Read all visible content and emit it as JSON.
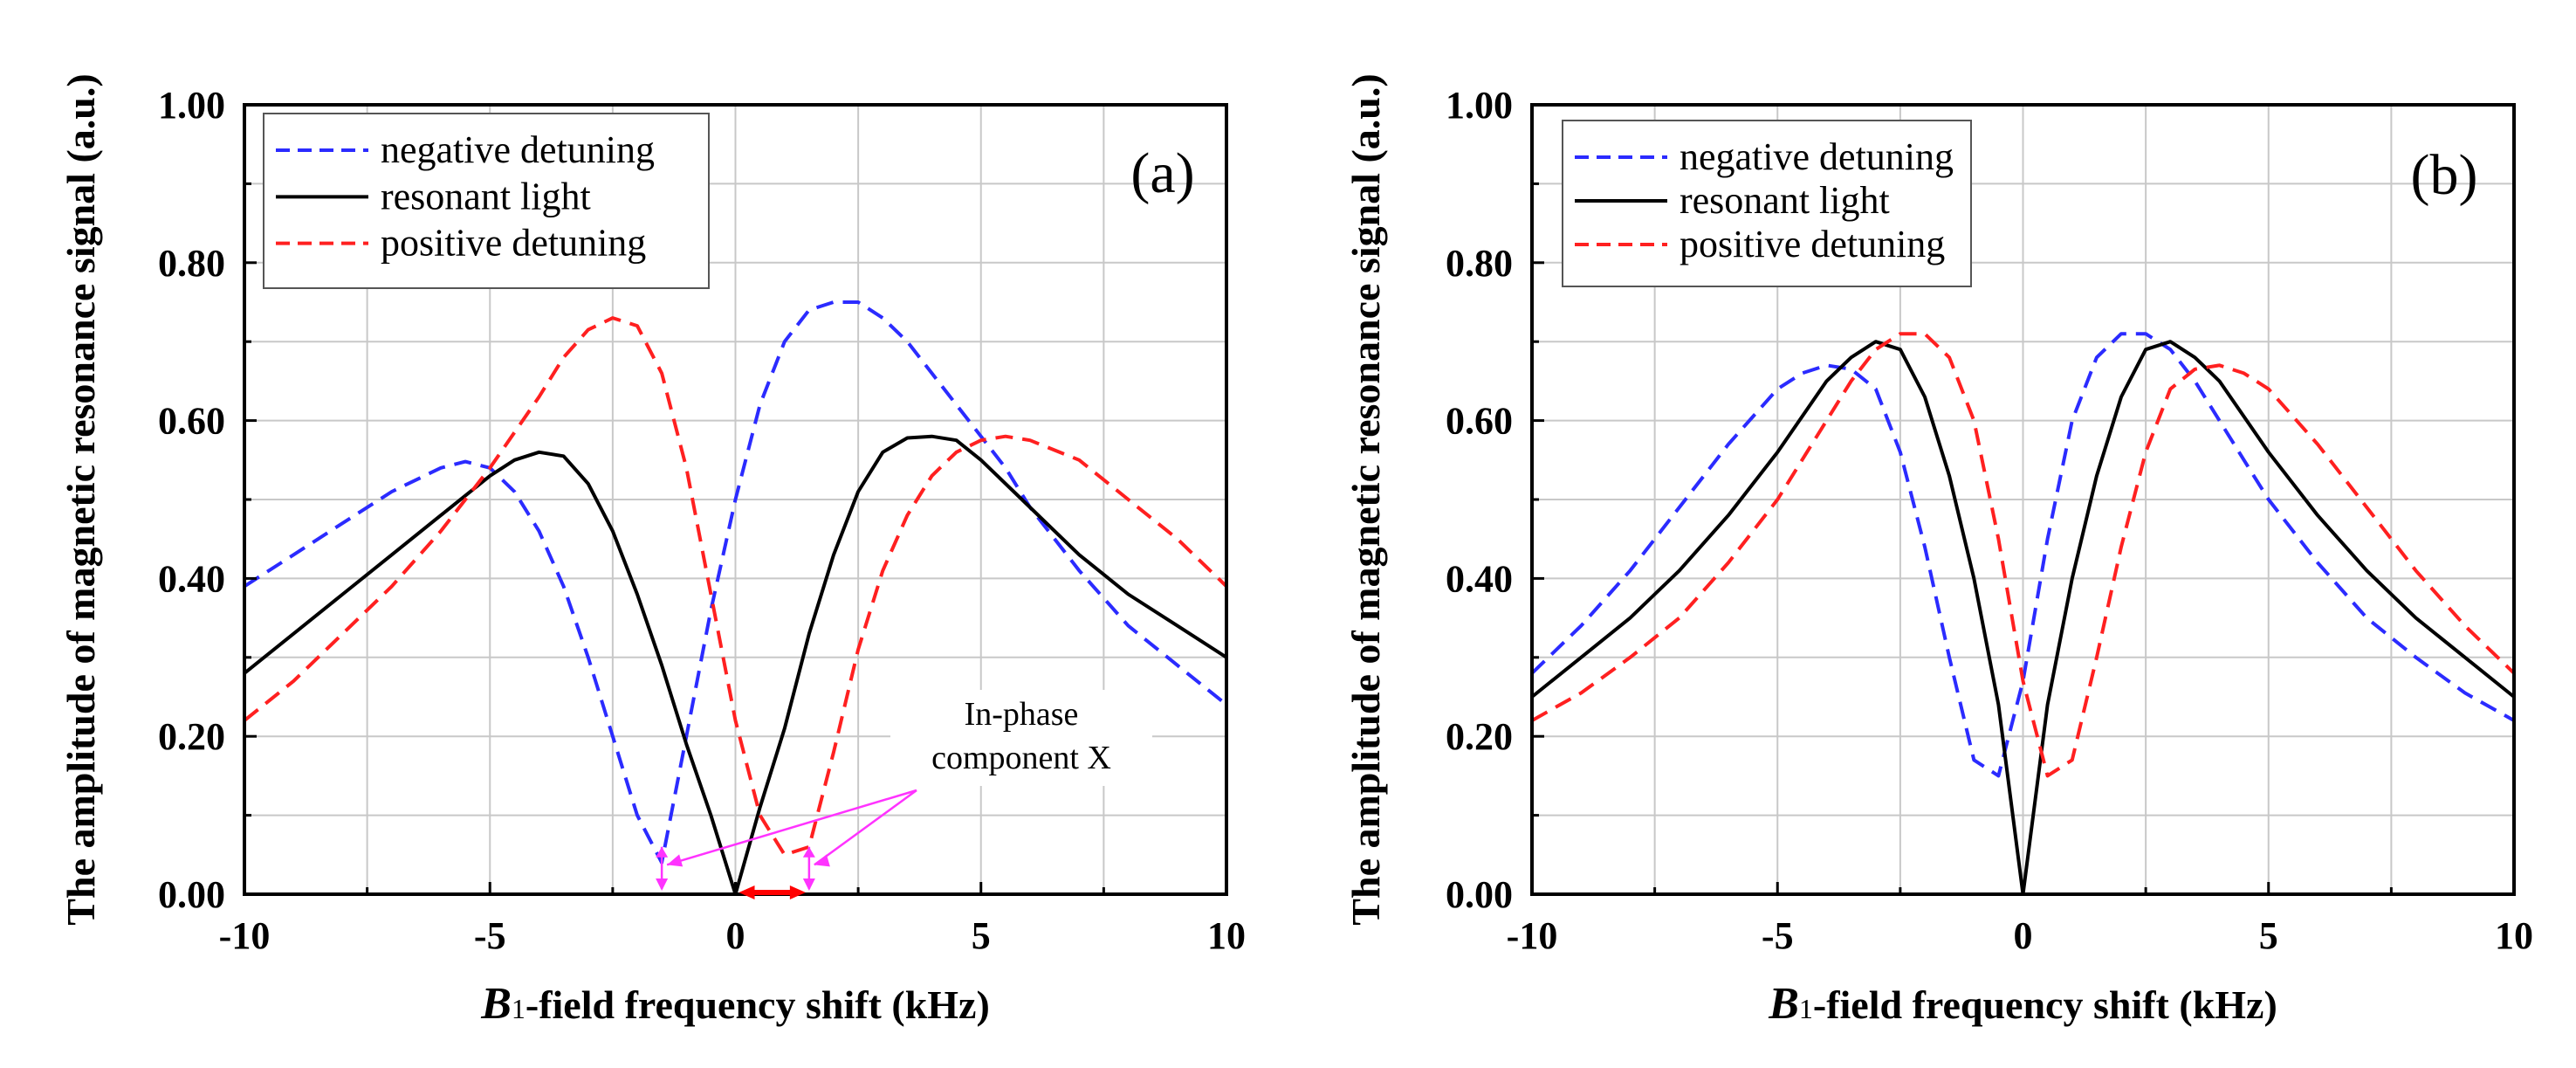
{
  "chart_data": [
    {
      "type": "line",
      "panel_label": "(a)",
      "xlabel_italic": "B",
      "xlabel_sub": "1",
      "xlabel_rest": "-field frequency shift (kHz)",
      "ylabel": "The amplitude of magnetic resonance signal (a.u.)",
      "xlim": [
        -10,
        10
      ],
      "ylim": [
        0,
        1
      ],
      "xticks": [
        -10,
        -5,
        0,
        5,
        10
      ],
      "xtick_labels": [
        "-10",
        "-5",
        "0",
        "5",
        "10"
      ],
      "yticks": [
        0,
        0.2,
        0.4,
        0.6,
        0.8,
        1.0
      ],
      "ytick_labels": [
        "0.00",
        "0.20",
        "0.40",
        "0.60",
        "0.80",
        "1.00"
      ],
      "grid": true,
      "legend_position": "top-left",
      "annotation": {
        "text_lines": [
          "In-phase",
          "component X"
        ],
        "points": [
          [
            -1.5,
            0.035
          ],
          [
            1.5,
            0.035
          ]
        ]
      },
      "series": [
        {
          "name": "negative detuning",
          "color": "#2b2bff",
          "style": "dashed",
          "x": [
            -10,
            -9,
            -8,
            -7,
            -6,
            -5.5,
            -5,
            -4.5,
            -4,
            -3.5,
            -3,
            -2.5,
            -2,
            -1.5,
            -1,
            -0.5,
            0,
            0.5,
            1,
            1.5,
            2,
            2.5,
            3,
            3.5,
            4,
            4.5,
            5,
            5.5,
            6,
            7,
            8,
            9,
            10
          ],
          "y": [
            0.39,
            0.43,
            0.47,
            0.51,
            0.54,
            0.548,
            0.54,
            0.51,
            0.46,
            0.39,
            0.3,
            0.2,
            0.1,
            0.04,
            0.2,
            0.36,
            0.5,
            0.62,
            0.7,
            0.74,
            0.75,
            0.75,
            0.73,
            0.7,
            0.66,
            0.62,
            0.58,
            0.54,
            0.49,
            0.41,
            0.34,
            0.29,
            0.24
          ]
        },
        {
          "name": "resonant light",
          "color": "#000000",
          "style": "solid",
          "x": [
            -10,
            -9,
            -8,
            -7,
            -6,
            -5,
            -4.5,
            -4,
            -3.5,
            -3,
            -2.5,
            -2,
            -1.5,
            -1,
            -0.5,
            0,
            0.5,
            1,
            1.5,
            2,
            2.5,
            3,
            3.5,
            4,
            4.5,
            5,
            6,
            7,
            8,
            9,
            10
          ],
          "y": [
            0.28,
            0.33,
            0.38,
            0.43,
            0.48,
            0.53,
            0.55,
            0.56,
            0.555,
            0.52,
            0.46,
            0.38,
            0.29,
            0.19,
            0.1,
            0.0,
            0.11,
            0.21,
            0.33,
            0.43,
            0.51,
            0.56,
            0.578,
            0.58,
            0.575,
            0.55,
            0.49,
            0.43,
            0.38,
            0.34,
            0.3
          ]
        },
        {
          "name": "positive detuning",
          "color": "#ff2020",
          "style": "dashed",
          "x": [
            -10,
            -9,
            -8,
            -7,
            -6,
            -5,
            -4,
            -3.5,
            -3,
            -2.5,
            -2,
            -1.5,
            -1,
            -0.5,
            0,
            0.5,
            1,
            1.5,
            2,
            2.5,
            3,
            3.5,
            4,
            4.5,
            5,
            5.5,
            6,
            7,
            8,
            9,
            10
          ],
          "y": [
            0.22,
            0.27,
            0.33,
            0.39,
            0.46,
            0.54,
            0.63,
            0.68,
            0.715,
            0.73,
            0.72,
            0.66,
            0.54,
            0.38,
            0.22,
            0.1,
            0.05,
            0.06,
            0.18,
            0.31,
            0.41,
            0.48,
            0.53,
            0.56,
            0.575,
            0.58,
            0.575,
            0.55,
            0.5,
            0.45,
            0.39
          ]
        }
      ]
    },
    {
      "type": "line",
      "panel_label": "(b)",
      "xlabel_italic": "B",
      "xlabel_sub": "1",
      "xlabel_rest": "-field frequency shift (kHz)",
      "ylabel": "The amplitude of magnetic resonance signal (a.u.)",
      "xlim": [
        -10,
        10
      ],
      "ylim": [
        0,
        1
      ],
      "xticks": [
        -10,
        -5,
        0,
        5,
        10
      ],
      "xtick_labels": [
        "-10",
        "-5",
        "0",
        "5",
        "10"
      ],
      "yticks": [
        0,
        0.2,
        0.4,
        0.6,
        0.8,
        1.0
      ],
      "ytick_labels": [
        "0.00",
        "0.20",
        "0.40",
        "0.60",
        "0.80",
        "1.00"
      ],
      "grid": true,
      "legend_position": "top-left",
      "series": [
        {
          "name": "negative detuning",
          "color": "#2b2bff",
          "style": "dashed",
          "x": [
            -10,
            -9,
            -8,
            -7,
            -6,
            -5,
            -4.5,
            -4,
            -3.5,
            -3,
            -2.5,
            -2,
            -1.5,
            -1,
            -0.5,
            0,
            0.5,
            1,
            1.5,
            2,
            2.5,
            3,
            3.5,
            4,
            4.5,
            5,
            6,
            7,
            8,
            9,
            10
          ],
          "y": [
            0.28,
            0.34,
            0.41,
            0.49,
            0.57,
            0.64,
            0.66,
            0.67,
            0.665,
            0.64,
            0.56,
            0.44,
            0.3,
            0.17,
            0.15,
            0.27,
            0.45,
            0.6,
            0.68,
            0.71,
            0.71,
            0.69,
            0.65,
            0.6,
            0.55,
            0.5,
            0.42,
            0.35,
            0.3,
            0.255,
            0.22
          ]
        },
        {
          "name": "resonant light",
          "color": "#000000",
          "style": "solid",
          "x": [
            -10,
            -9,
            -8,
            -7,
            -6,
            -5,
            -4,
            -3.5,
            -3,
            -2.5,
            -2,
            -1.5,
            -1,
            -0.5,
            0,
            0.5,
            1,
            1.5,
            2,
            2.5,
            3,
            3.5,
            4,
            5,
            6,
            7,
            8,
            9,
            10
          ],
          "y": [
            0.25,
            0.3,
            0.35,
            0.41,
            0.48,
            0.56,
            0.65,
            0.68,
            0.7,
            0.69,
            0.63,
            0.53,
            0.4,
            0.24,
            0.0,
            0.24,
            0.4,
            0.53,
            0.63,
            0.69,
            0.7,
            0.68,
            0.65,
            0.56,
            0.48,
            0.41,
            0.35,
            0.3,
            0.25
          ]
        },
        {
          "name": "positive detuning",
          "color": "#ff2020",
          "style": "dashed",
          "x": [
            -10,
            -9,
            -8,
            -7,
            -6,
            -5,
            -4,
            -3.5,
            -3,
            -2.5,
            -2,
            -1.5,
            -1,
            -0.5,
            0,
            0.5,
            1,
            1.5,
            2,
            2.5,
            3,
            3.5,
            4,
            4.5,
            5,
            6,
            7,
            8,
            9,
            10
          ],
          "y": [
            0.22,
            0.255,
            0.3,
            0.35,
            0.42,
            0.5,
            0.6,
            0.65,
            0.69,
            0.71,
            0.71,
            0.68,
            0.6,
            0.45,
            0.27,
            0.15,
            0.17,
            0.3,
            0.44,
            0.56,
            0.64,
            0.665,
            0.67,
            0.66,
            0.64,
            0.57,
            0.49,
            0.41,
            0.34,
            0.28
          ]
        }
      ]
    }
  ]
}
